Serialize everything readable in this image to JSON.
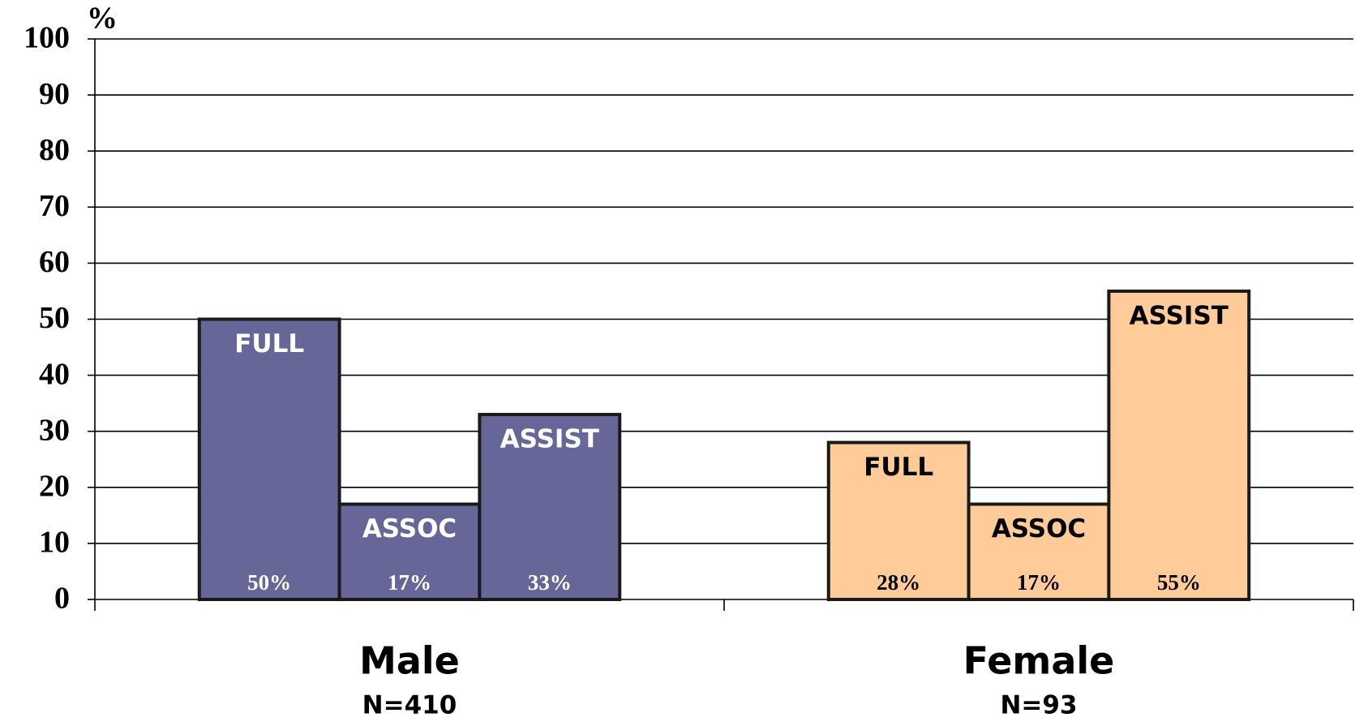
{
  "chart_data": {
    "type": "bar",
    "y_axis_label": "%",
    "categories": [
      "Male",
      "Female"
    ],
    "category_notes": [
      "N=410",
      "N=93"
    ],
    "colors": [
      "#666699",
      "#ffcc99"
    ],
    "series": [
      {
        "name": "FULL",
        "values": [
          50,
          28
        ],
        "value_labels": [
          "50%",
          "28%"
        ]
      },
      {
        "name": "ASSOC",
        "values": [
          17,
          17
        ],
        "value_labels": [
          "17%",
          "17%"
        ]
      },
      {
        "name": "ASSIST",
        "values": [
          33,
          55
        ],
        "value_labels": [
          "33%",
          "55%"
        ]
      }
    ],
    "ylim": [
      0,
      100
    ],
    "yticks": [
      0,
      10,
      20,
      30,
      40,
      50,
      60,
      70,
      80,
      90,
      100
    ],
    "grid": true
  }
}
